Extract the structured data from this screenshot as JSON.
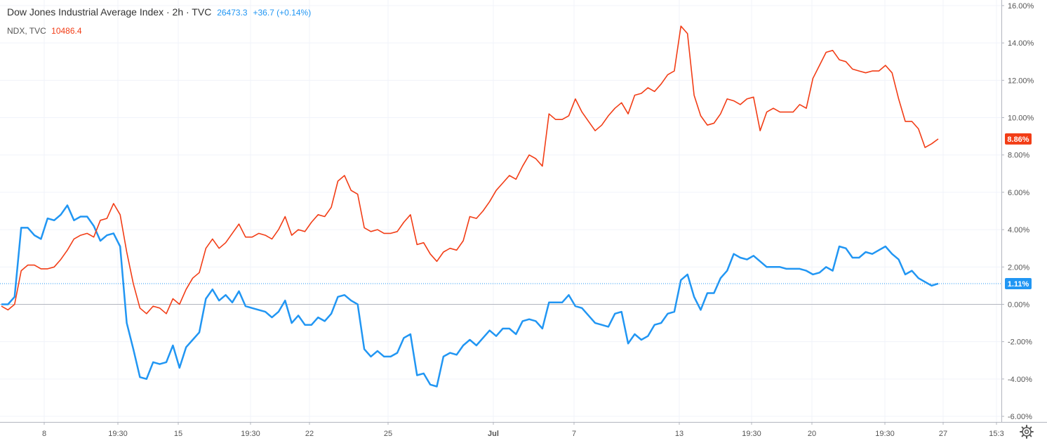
{
  "legend": {
    "main_title": "Dow Jones Industrial Average Index · 2h · TVC",
    "main_price": "26473.3",
    "main_change": "+36.7 (+0.14%)",
    "compare_title": "NDX, TVC",
    "compare_price": "10486.4"
  },
  "price_axis": {
    "ticks": [
      "16.00%",
      "14.00%",
      "12.00%",
      "10.00%",
      "8.00%",
      "6.00%",
      "4.00%",
      "2.00%",
      "0.00%",
      "-2.00%",
      "-4.00%",
      "-6.00%"
    ]
  },
  "time_axis": {
    "ticks": [
      "8",
      "19:30",
      "15",
      "19:30",
      "22",
      "25",
      "Jul",
      "7",
      "13",
      "19:30",
      "20",
      "19:30",
      "27",
      "15:3"
    ]
  },
  "settings_icon": "gear-icon",
  "colors": {
    "dji": "#2196f3",
    "ndx": "#f23d16",
    "grid": "#f0f3fa",
    "axis_text": "#555555"
  },
  "chart_data": {
    "type": "line",
    "y_unit": "%",
    "ylim": [
      -6.3,
      16.3
    ],
    "grid": true,
    "series": [
      {
        "name": "Dow Jones Industrial Average Index · 2h · TVC",
        "color": "#2196f3",
        "last_label": "1.11%",
        "values": [
          0.0,
          0.0,
          0.4,
          4.1,
          4.1,
          3.7,
          3.5,
          4.6,
          4.5,
          4.8,
          5.3,
          4.5,
          4.7,
          4.7,
          4.2,
          3.4,
          3.7,
          3.8,
          3.1,
          -1.0,
          -2.4,
          -3.9,
          -4.0,
          -3.1,
          -3.2,
          -3.1,
          -2.2,
          -3.4,
          -2.3,
          -1.9,
          -1.5,
          0.3,
          0.8,
          0.2,
          0.5,
          0.1,
          0.7,
          -0.1,
          -0.2,
          -0.3,
          -0.4,
          -0.7,
          -0.4,
          0.2,
          -1.0,
          -0.6,
          -1.1,
          -1.1,
          -0.7,
          -0.9,
          -0.5,
          0.4,
          0.5,
          0.2,
          0.0,
          -2.4,
          -2.8,
          -2.5,
          -2.8,
          -2.8,
          -2.6,
          -1.8,
          -1.6,
          -3.8,
          -3.7,
          -4.3,
          -4.4,
          -2.8,
          -2.6,
          -2.7,
          -2.2,
          -1.9,
          -2.2,
          -1.8,
          -1.4,
          -1.7,
          -1.3,
          -1.3,
          -1.6,
          -0.9,
          -0.8,
          -0.9,
          -1.3,
          0.1,
          0.1,
          0.1,
          0.5,
          -0.1,
          -0.2,
          -0.6,
          -1.0,
          -1.1,
          -1.2,
          -0.5,
          -0.4,
          -2.1,
          -1.6,
          -1.9,
          -1.7,
          -1.1,
          -1.0,
          -0.5,
          -0.4,
          1.3,
          1.6,
          0.4,
          -0.3,
          0.6,
          0.6,
          1.4,
          1.8,
          2.7,
          2.5,
          2.4,
          2.6,
          2.3,
          2.0,
          2.0,
          2.0,
          1.9,
          1.9,
          1.9,
          1.8,
          1.6,
          1.7,
          2.0,
          1.8,
          3.1,
          3.0,
          2.5,
          2.5,
          2.8,
          2.7,
          2.9,
          3.1,
          2.7,
          2.4,
          1.6,
          1.8,
          1.4,
          1.2,
          1.0,
          1.11
        ]
      },
      {
        "name": "NDX, TVC",
        "color": "#f23d16",
        "last_label": "8.86%",
        "values": [
          -0.1,
          -0.3,
          0.0,
          1.8,
          2.1,
          2.1,
          1.9,
          1.9,
          2.0,
          2.4,
          2.9,
          3.5,
          3.7,
          3.8,
          3.6,
          4.5,
          4.6,
          5.4,
          4.8,
          2.8,
          1.1,
          -0.2,
          -0.5,
          -0.1,
          -0.2,
          -0.5,
          0.3,
          0.0,
          0.8,
          1.4,
          1.7,
          3.0,
          3.5,
          3.0,
          3.3,
          3.8,
          4.3,
          3.6,
          3.6,
          3.8,
          3.7,
          3.5,
          4.0,
          4.7,
          3.7,
          4.0,
          3.9,
          4.4,
          4.8,
          4.7,
          5.2,
          6.6,
          6.9,
          6.1,
          5.9,
          4.1,
          3.9,
          4.0,
          3.8,
          3.8,
          3.9,
          4.4,
          4.8,
          3.2,
          3.3,
          2.7,
          2.3,
          2.8,
          3.0,
          2.9,
          3.4,
          4.7,
          4.6,
          5.0,
          5.5,
          6.1,
          6.5,
          6.9,
          6.7,
          7.4,
          8.0,
          7.8,
          7.4,
          10.2,
          9.9,
          9.9,
          10.1,
          11.0,
          10.3,
          9.8,
          9.3,
          9.6,
          10.1,
          10.5,
          10.8,
          10.2,
          11.2,
          11.3,
          11.6,
          11.4,
          11.8,
          12.3,
          12.5,
          14.9,
          14.5,
          11.2,
          10.1,
          9.6,
          9.7,
          10.2,
          11.0,
          10.9,
          10.7,
          11.0,
          11.1,
          9.3,
          10.3,
          10.5,
          10.3,
          10.3,
          10.3,
          10.7,
          10.5,
          12.1,
          12.8,
          13.5,
          13.6,
          13.1,
          13.0,
          12.6,
          12.5,
          12.4,
          12.5,
          12.5,
          12.8,
          12.4,
          11.0,
          9.8,
          9.8,
          9.4,
          8.4,
          8.6,
          8.86
        ]
      }
    ]
  }
}
